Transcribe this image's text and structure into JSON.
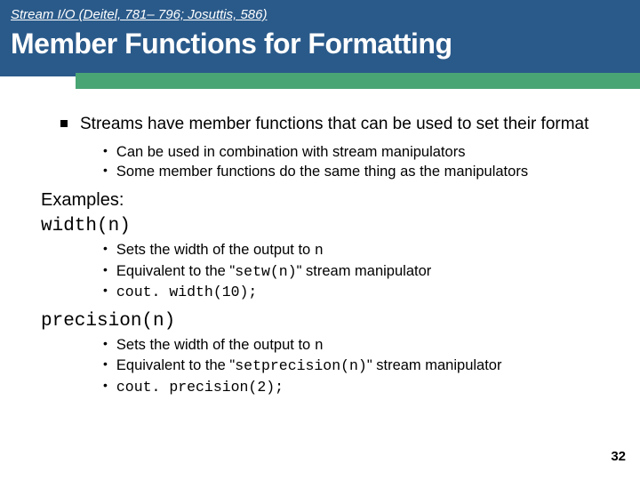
{
  "header": {
    "breadcrumb": "Stream I/O (Deitel, 781– 796; Josuttis, 586)",
    "title": "Member Functions for Formatting",
    "header_bg": "#2a5a8a",
    "band_color": "#4aa574",
    "title_fontsize": 32,
    "breadcrumb_fontsize": 15
  },
  "content": {
    "main_point": "Streams have member functions that can be used to set their format",
    "main_subs": [
      "Can be used in combination with stream manipulators",
      "Some member functions do the same thing as the manipulators"
    ],
    "examples_label": "Examples:",
    "ex1_name": "width(n)",
    "ex1_items": [
      {
        "pre": "Sets the width of the output to ",
        "code": "n",
        "post": ""
      },
      {
        "pre": "Equivalent to the \"",
        "code": "setw(n)",
        "post": "\" stream manipulator"
      },
      {
        "pre": "",
        "code": "cout. width(10);",
        "post": ""
      }
    ],
    "ex2_name": "precision(n)",
    "ex2_items": [
      {
        "pre": "Sets the width of the output to ",
        "code": "n",
        "post": ""
      },
      {
        "pre": "Equivalent to the \"",
        "code": "setprecision(n)",
        "post": "\" stream manipulator"
      },
      {
        "pre": "",
        "code": "cout. precision(2);",
        "post": ""
      }
    ]
  },
  "page_number": "32"
}
